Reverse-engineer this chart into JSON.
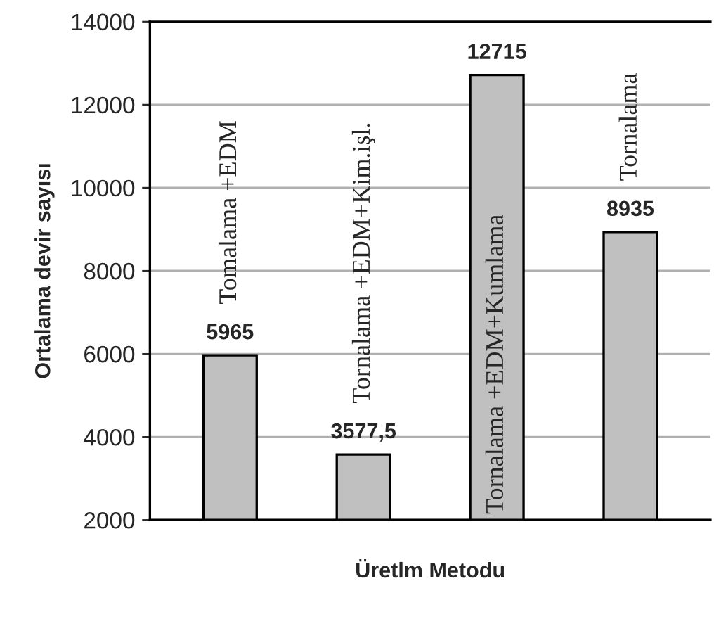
{
  "chart_data": {
    "type": "bar",
    "xlabel": "Üretlm Metodu",
    "ylabel": "Ortalama devir sayısı",
    "categories": [
      "Tomalama +EDM",
      "Tornalama +EDM+Kim.işl.",
      "Tornalama +EDM+Kumlama",
      "Tornalama"
    ],
    "values": [
      5965,
      3577.5,
      12715,
      8935
    ],
    "value_labels": [
      "5965",
      "3577,5",
      "12715",
      "8935"
    ],
    "color": "#c0c0c0",
    "ylim": [
      2000,
      14000
    ],
    "yticks": [
      2000,
      4000,
      6000,
      8000,
      10000,
      12000,
      14000
    ],
    "grid": "y",
    "tick_labels": "y"
  }
}
